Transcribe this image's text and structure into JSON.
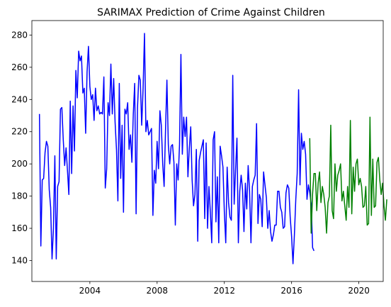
{
  "chart_data": {
    "type": "line",
    "title": "SARIMAX Prediction of Crime Against Children",
    "xlabel": "",
    "ylabel": "",
    "xlim": [
      2000.55,
      2021.45
    ],
    "ylim": [
      127,
      289
    ],
    "x_ticks": [
      2004,
      2008,
      2012,
      2016,
      2020
    ],
    "x_tick_labels": [
      "2004",
      "2008",
      "2012",
      "2016",
      "2020"
    ],
    "y_ticks": [
      140,
      160,
      180,
      200,
      220,
      240,
      260,
      280
    ],
    "y_tick_labels": [
      "140",
      "160",
      "180",
      "200",
      "220",
      "240",
      "260",
      "280"
    ],
    "grid": false,
    "legend": "none",
    "series": [
      {
        "color": "#0000ff",
        "start_year": 2001,
        "step_months": 1,
        "values": [
          231,
          149,
          190,
          191,
          207,
          214,
          211,
          184,
          173,
          141,
          160,
          205,
          141,
          186,
          189,
          234,
          235,
          215,
          199,
          210,
          196,
          181,
          239,
          194,
          236,
          208,
          258,
          241,
          270,
          264,
          267,
          244,
          247,
          219,
          257,
          273,
          248,
          240,
          243,
          227,
          247,
          233,
          236,
          231,
          232,
          231,
          254,
          185,
          197,
          238,
          230,
          262,
          231,
          253,
          226,
          209,
          177,
          250,
          191,
          224,
          170,
          234,
          231,
          238,
          209,
          218,
          201,
          231,
          250,
          169,
          235,
          255,
          252,
          224,
          247,
          281,
          220,
          227,
          218,
          220,
          222,
          168,
          196,
          188,
          214,
          197,
          233,
          224,
          200,
          186,
          221,
          252,
          212,
          200,
          211,
          212,
          201,
          162,
          200,
          190,
          212,
          268,
          206,
          229,
          217,
          229,
          192,
          210,
          223,
          190,
          174,
          181,
          209,
          152,
          202,
          207,
          211,
          215,
          166,
          213,
          160,
          186,
          170,
          151,
          215,
          220,
          164,
          192,
          151,
          211,
          205,
          198,
          170,
          151,
          198,
          176,
          167,
          165,
          255,
          175,
          196,
          216,
          151,
          183,
          193,
          184,
          158,
          188,
          172,
          199,
          183,
          151,
          186,
          190,
          193,
          225,
          163,
          181,
          178,
          161,
          195,
          187,
          179,
          160,
          171,
          158,
          152,
          156,
          162,
          162,
          183,
          183,
          173,
          170,
          160,
          161,
          182,
          187,
          185,
          167,
          155,
          138,
          156,
          178,
          194,
          246,
          187,
          219,
          209,
          214,
          206,
          178,
          187,
          182,
          175,
          148,
          146
        ]
      },
      {
        "color": "#008000",
        "start_year": 2017.08,
        "step_months": 1,
        "values": [
          216,
          157,
          181,
          194,
          194,
          171,
          188,
          195,
          176,
          186,
          181,
          173,
          157,
          176,
          180,
          224,
          171,
          166,
          200,
          183,
          193,
          196,
          200,
          177,
          183,
          174,
          165,
          186,
          173,
          227,
          169,
          198,
          183,
          200,
          203,
          187,
          191,
          186,
          173,
          174,
          186,
          162,
          163,
          229,
          168,
          203,
          173,
          174,
          201,
          204,
          190,
          181,
          188,
          174,
          165,
          178
        ]
      }
    ]
  }
}
